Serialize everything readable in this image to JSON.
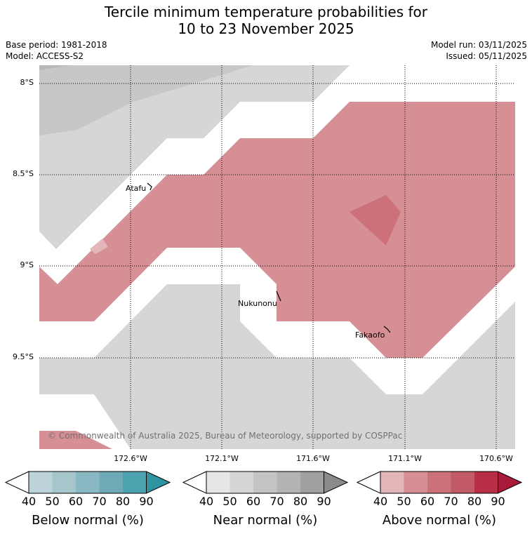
{
  "title": {
    "line1": "Tercile minimum temperature probabilities for",
    "line2": "10 to 23 November 2025"
  },
  "meta": {
    "base_period": "Base period: 1981-2018",
    "model": "Model: ACCESS-S2",
    "model_run": "Model run: 03/11/2025",
    "issued": "Issued: 05/11/2025"
  },
  "latitude_labels": [
    "8°S",
    "8.5°S",
    "9°S",
    "9.5°S"
  ],
  "longitude_labels": [
    "172.6°W",
    "172.1°W",
    "171.6°W",
    "171.1°W",
    "170.6°W"
  ],
  "places": [
    "Atafu",
    "Nukunonu",
    "Fakaofo"
  ],
  "copyright": "© Commonwealth of Australia 2025, Bureau of Meteorology, supported by COSPPac",
  "colorbars": [
    {
      "label": "Below normal (%)",
      "ticks": [
        "40",
        "50",
        "60",
        "70",
        "80",
        "90"
      ],
      "colors": [
        "#bcd3d9",
        "#a6c6cc",
        "#8ab8c2",
        "#6daab6",
        "#4da2b0",
        "#2f93a2"
      ]
    },
    {
      "label": "Near normal (%)",
      "ticks": [
        "40",
        "50",
        "60",
        "70",
        "80",
        "90"
      ],
      "colors": [
        "#e6e6e6",
        "#d6d6d6",
        "#c4c4c4",
        "#b3b3b3",
        "#a0a0a0",
        "#8a8a8a"
      ]
    },
    {
      "label": "Above normal (%)",
      "ticks": [
        "40",
        "50",
        "60",
        "70",
        "80",
        "90"
      ],
      "colors": [
        "#e3b6ba",
        "#d68f95",
        "#cc7179",
        "#c25a65",
        "#b82e45",
        "#a8193a"
      ]
    }
  ]
}
